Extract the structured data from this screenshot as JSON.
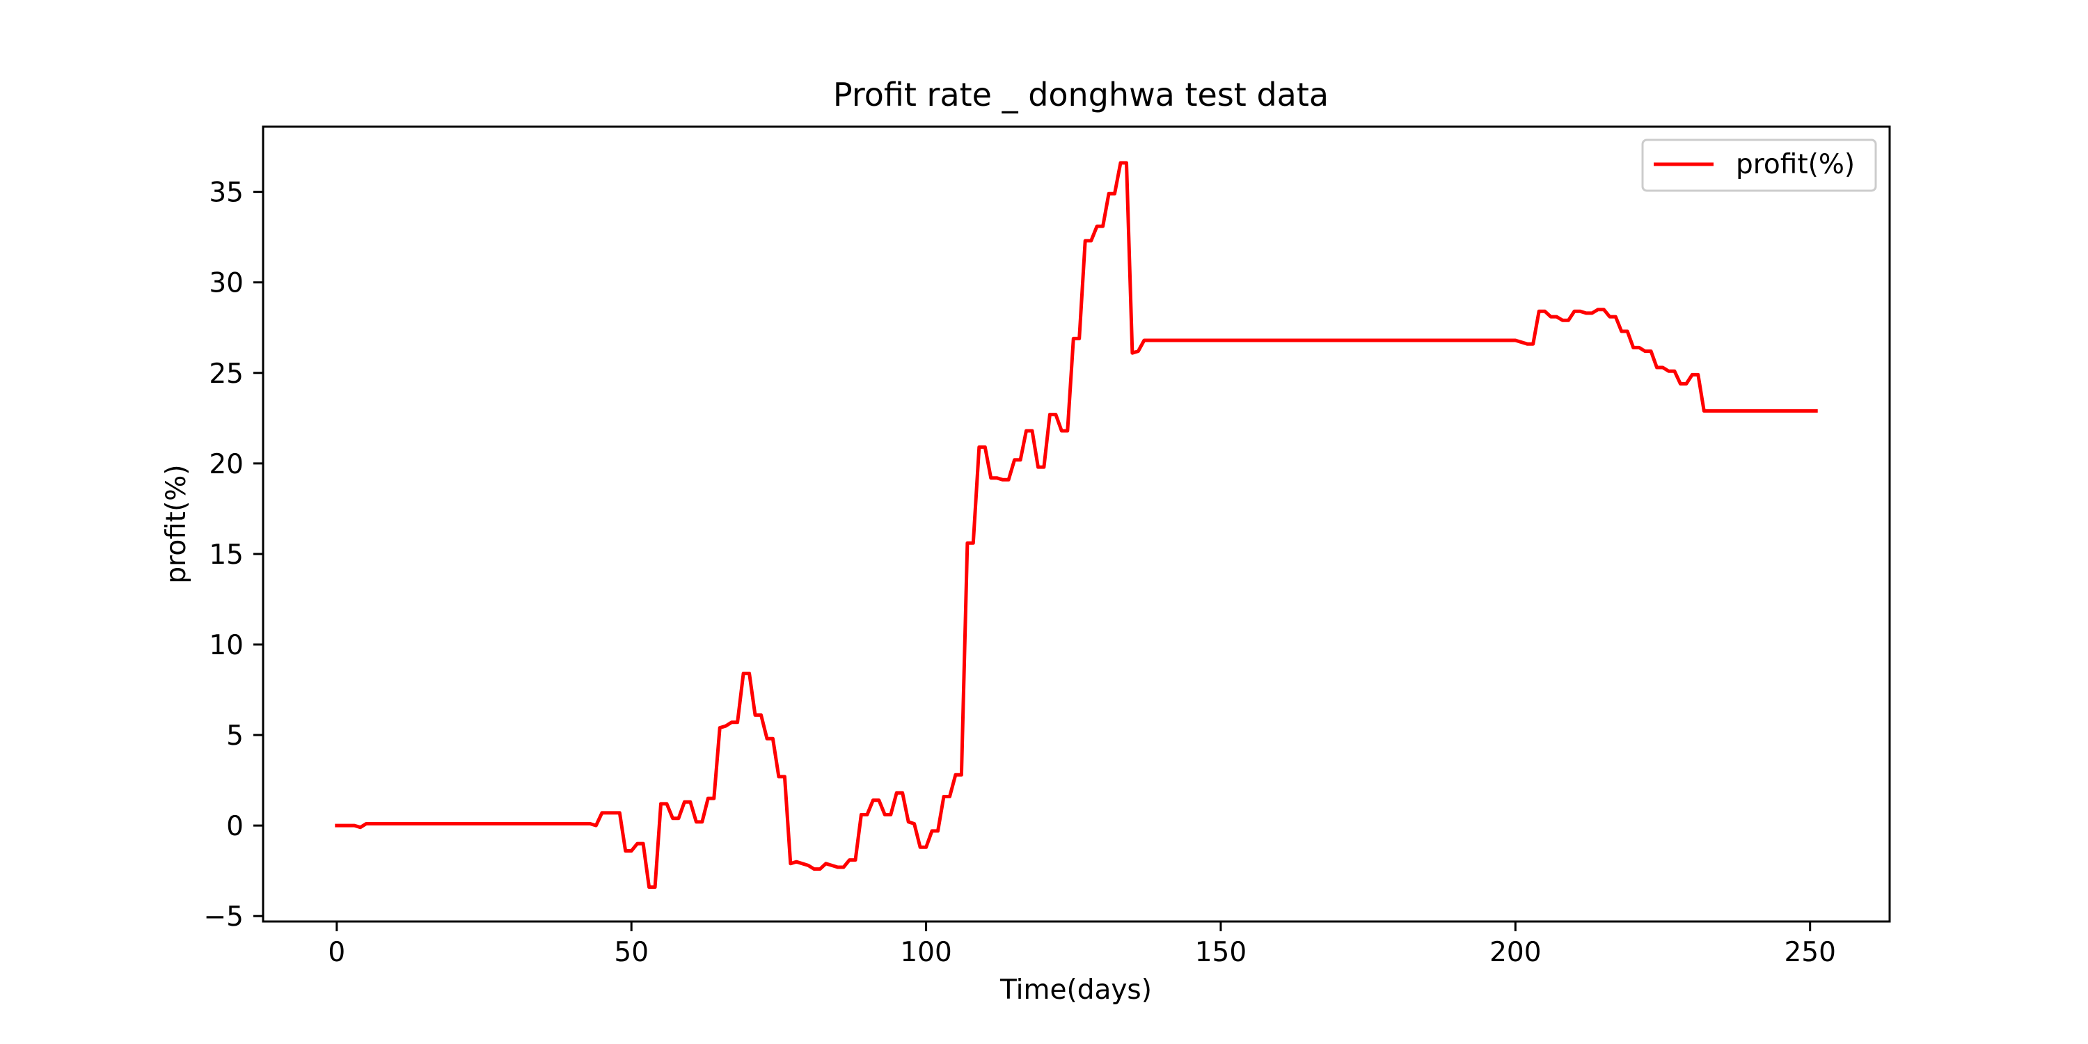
{
  "chart_data": {
    "type": "line",
    "title": "Profit rate _ donghwa test data",
    "xlabel": "Time(days)",
    "ylabel": "profit(%)",
    "xlim": [
      -12.5,
      263.5
    ],
    "ylim": [
      -5.3,
      38.6
    ],
    "xticks": [
      0,
      50,
      100,
      150,
      200,
      250
    ],
    "xtick_labels": [
      "0",
      "50",
      "100",
      "150",
      "200",
      "250"
    ],
    "yticks": [
      -5,
      0,
      5,
      10,
      15,
      20,
      25,
      30,
      35
    ],
    "ytick_labels": [
      "−5",
      "0",
      "5",
      "10",
      "15",
      "20",
      "25",
      "30",
      "35"
    ],
    "grid": false,
    "legend": {
      "position": "top-right"
    },
    "series": [
      {
        "name": "profit(%)",
        "color": "#ff0000",
        "points": [
          [
            0,
            0
          ],
          [
            3,
            0
          ],
          [
            4,
            -0.1
          ],
          [
            5,
            0.1
          ],
          [
            10,
            0.1
          ],
          [
            20,
            0.1
          ],
          [
            30,
            0.1
          ],
          [
            40,
            0.1
          ],
          [
            43,
            0.1
          ],
          [
            44,
            0
          ],
          [
            45,
            0.7
          ],
          [
            46,
            0.7
          ],
          [
            47,
            0.7
          ],
          [
            48,
            0.7
          ],
          [
            49,
            -1.4
          ],
          [
            50,
            -1.4
          ],
          [
            51,
            -1.0
          ],
          [
            52,
            -1.0
          ],
          [
            53,
            -3.4
          ],
          [
            54,
            -3.4
          ],
          [
            55,
            1.2
          ],
          [
            56,
            1.2
          ],
          [
            57,
            0.4
          ],
          [
            58,
            0.4
          ],
          [
            59,
            1.3
          ],
          [
            60,
            1.3
          ],
          [
            61,
            0.2
          ],
          [
            62,
            0.2
          ],
          [
            63,
            1.5
          ],
          [
            64,
            1.5
          ],
          [
            65,
            5.4
          ],
          [
            66,
            5.5
          ],
          [
            67,
            5.7
          ],
          [
            68,
            5.7
          ],
          [
            69,
            8.4
          ],
          [
            70,
            8.4
          ],
          [
            71,
            6.1
          ],
          [
            72,
            6.1
          ],
          [
            73,
            4.8
          ],
          [
            74,
            4.8
          ],
          [
            75,
            2.7
          ],
          [
            76,
            2.7
          ],
          [
            77,
            -2.1
          ],
          [
            78,
            -2.0
          ],
          [
            79,
            -2.1
          ],
          [
            80,
            -2.2
          ],
          [
            81,
            -2.4
          ],
          [
            82,
            -2.4
          ],
          [
            83,
            -2.1
          ],
          [
            84,
            -2.2
          ],
          [
            85,
            -2.3
          ],
          [
            86,
            -2.3
          ],
          [
            87,
            -1.9
          ],
          [
            88,
            -1.9
          ],
          [
            89,
            0.6
          ],
          [
            90,
            0.6
          ],
          [
            91,
            1.4
          ],
          [
            92,
            1.4
          ],
          [
            93,
            0.6
          ],
          [
            94,
            0.6
          ],
          [
            95,
            1.8
          ],
          [
            96,
            1.8
          ],
          [
            97,
            0.2
          ],
          [
            98,
            0.1
          ],
          [
            99,
            -1.2
          ],
          [
            100,
            -1.2
          ],
          [
            101,
            -0.3
          ],
          [
            102,
            -0.3
          ],
          [
            103,
            1.6
          ],
          [
            104,
            1.6
          ],
          [
            105,
            2.8
          ],
          [
            106,
            2.8
          ],
          [
            107,
            15.6
          ],
          [
            108,
            15.6
          ],
          [
            109,
            20.9
          ],
          [
            110,
            20.9
          ],
          [
            111,
            19.2
          ],
          [
            112,
            19.2
          ],
          [
            113,
            19.1
          ],
          [
            114,
            19.1
          ],
          [
            115,
            20.2
          ],
          [
            116,
            20.2
          ],
          [
            117,
            21.8
          ],
          [
            118,
            21.8
          ],
          [
            119,
            19.8
          ],
          [
            120,
            19.8
          ],
          [
            121,
            22.7
          ],
          [
            122,
            22.7
          ],
          [
            123,
            21.8
          ],
          [
            124,
            21.8
          ],
          [
            125,
            26.9
          ],
          [
            126,
            26.9
          ],
          [
            127,
            32.3
          ],
          [
            128,
            32.3
          ],
          [
            129,
            33.1
          ],
          [
            130,
            33.1
          ],
          [
            131,
            34.9
          ],
          [
            132,
            34.9
          ],
          [
            133,
            36.6
          ],
          [
            134,
            36.6
          ],
          [
            135,
            26.1
          ],
          [
            136,
            26.2
          ],
          [
            137,
            26.8
          ],
          [
            140,
            26.8
          ],
          [
            150,
            26.8
          ],
          [
            160,
            26.8
          ],
          [
            170,
            26.8
          ],
          [
            180,
            26.8
          ],
          [
            190,
            26.8
          ],
          [
            200,
            26.8
          ],
          [
            202,
            26.6
          ],
          [
            203,
            26.6
          ],
          [
            204,
            28.4
          ],
          [
            205,
            28.4
          ],
          [
            206,
            28.1
          ],
          [
            207,
            28.1
          ],
          [
            208,
            27.9
          ],
          [
            209,
            27.9
          ],
          [
            210,
            28.4
          ],
          [
            211,
            28.4
          ],
          [
            212,
            28.3
          ],
          [
            213,
            28.3
          ],
          [
            214,
            28.5
          ],
          [
            215,
            28.5
          ],
          [
            216,
            28.1
          ],
          [
            217,
            28.1
          ],
          [
            218,
            27.3
          ],
          [
            219,
            27.3
          ],
          [
            220,
            26.4
          ],
          [
            221,
            26.4
          ],
          [
            222,
            26.2
          ],
          [
            223,
            26.2
          ],
          [
            224,
            25.3
          ],
          [
            225,
            25.3
          ],
          [
            226,
            25.1
          ],
          [
            227,
            25.1
          ],
          [
            228,
            24.4
          ],
          [
            229,
            24.4
          ],
          [
            230,
            24.9
          ],
          [
            231,
            24.9
          ],
          [
            232,
            22.9
          ],
          [
            240,
            22.9
          ],
          [
            250,
            22.9
          ],
          [
            251,
            22.9
          ]
        ]
      }
    ]
  }
}
